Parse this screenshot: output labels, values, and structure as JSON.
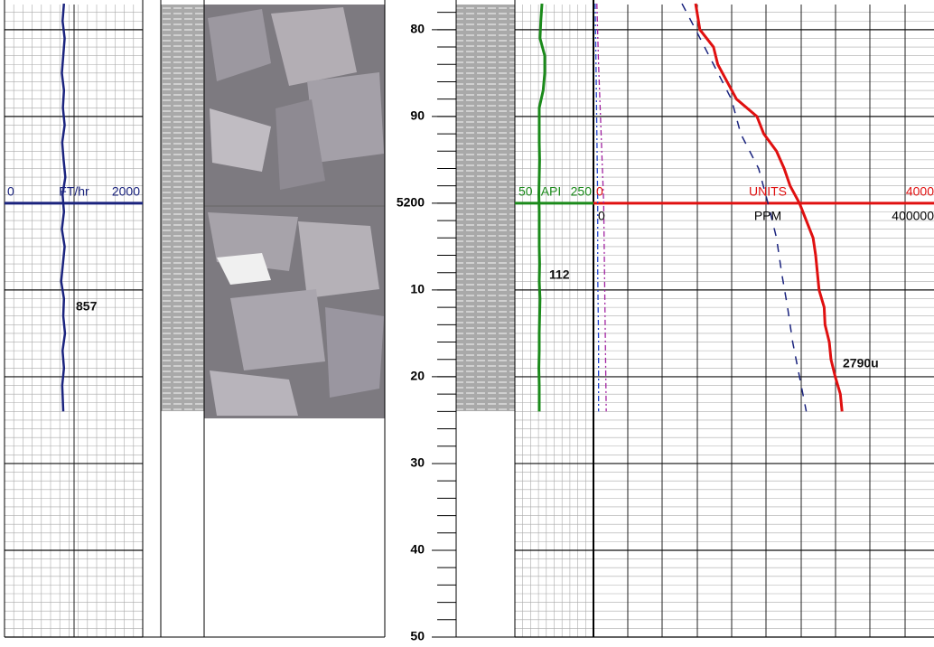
{
  "depth_range": [
    5177.1,
    5250
  ],
  "depth_labels": [
    {
      "value": 5180,
      "label": "80"
    },
    {
      "value": 5190,
      "label": "90"
    },
    {
      "value": 5200,
      "label": "5200"
    },
    {
      "value": 5210,
      "label": "10"
    },
    {
      "value": 5220,
      "label": "20"
    },
    {
      "value": 5230,
      "label": "30"
    },
    {
      "value": 5240,
      "label": "40"
    },
    {
      "value": 5250,
      "label": "50"
    }
  ],
  "rop": {
    "min_label": "0",
    "unit": "FT/hr",
    "max_label": "2000",
    "min": 0,
    "max": 2000,
    "color": "#1a237e",
    "annotation": "857",
    "depths": [
      5177,
      5179,
      5181,
      5183,
      5185,
      5187,
      5189,
      5191,
      5193,
      5195,
      5197,
      5199,
      5201,
      5203,
      5205,
      5207,
      5209,
      5211,
      5213,
      5215,
      5217,
      5219,
      5221,
      5224
    ],
    "values": [
      860,
      840,
      870,
      850,
      830,
      860,
      845,
      870,
      835,
      855,
      880,
      840,
      860,
      830,
      870,
      845,
      820,
      860,
      850,
      875,
      840,
      860,
      835,
      850
    ]
  },
  "gamma": {
    "min_label": "50",
    "unit": "API",
    "max_label": "250",
    "min": 50,
    "max": 250,
    "color": "#1a8a1a",
    "annotation": "112",
    "depths": [
      5177,
      5179,
      5181,
      5183,
      5185,
      5187,
      5189,
      5191,
      5193,
      5195,
      5197,
      5199,
      5201,
      5203,
      5205,
      5207,
      5209,
      5211,
      5213,
      5215,
      5217,
      5219,
      5221,
      5224
    ],
    "values": [
      119,
      116,
      114,
      126,
      126,
      122,
      112,
      112,
      112,
      113,
      112,
      111,
      112,
      112,
      112,
      113,
      112,
      114,
      113,
      112,
      112,
      111,
      112,
      112
    ]
  },
  "gas": {
    "min_label": "0",
    "unit": "UNITS",
    "max_label": "4000",
    "min": 0,
    "max": 4000,
    "color": "#e01010",
    "annotation": "2790u",
    "depths": [
      5177,
      5180,
      5182,
      5184,
      5186,
      5188,
      5190,
      5192,
      5194,
      5196,
      5198,
      5200,
      5202,
      5204,
      5206,
      5208,
      5210,
      5212,
      5214,
      5216,
      5218,
      5220,
      5222,
      5224
    ],
    "values": [
      1200,
      1250,
      1410,
      1460,
      1570,
      1680,
      1920,
      2000,
      2150,
      2240,
      2310,
      2420,
      2500,
      2580,
      2610,
      2630,
      2650,
      2710,
      2720,
      2770,
      2790,
      2840,
      2900,
      2920
    ]
  },
  "ppm": {
    "min_label": "0",
    "unit": "PPM",
    "max_label": "400000",
    "min": 0,
    "max": 400000,
    "color": "#1a237e",
    "depths": [
      5177,
      5180,
      5184,
      5188,
      5192,
      5196,
      5200,
      5204,
      5208,
      5212,
      5216,
      5220,
      5224
    ],
    "values": [
      104000,
      120000,
      141000,
      162000,
      173000,
      194000,
      205000,
      215000,
      221000,
      228000,
      234000,
      242000,
      250000
    ],
    "minor": [
      {
        "color": "#a020a0",
        "depths": [
          5177,
          5184,
          5192,
          5200,
          5208,
          5216,
          5224
        ],
        "values": [
          4000,
          6000,
          9000,
          12000,
          13000,
          14000,
          15000
        ]
      },
      {
        "color": "#2244cc",
        "depths": [
          5177,
          5184,
          5192,
          5200,
          5208,
          5216,
          5224
        ],
        "values": [
          2000,
          3000,
          4000,
          5000,
          5000,
          6000,
          6000
        ]
      }
    ]
  }
}
